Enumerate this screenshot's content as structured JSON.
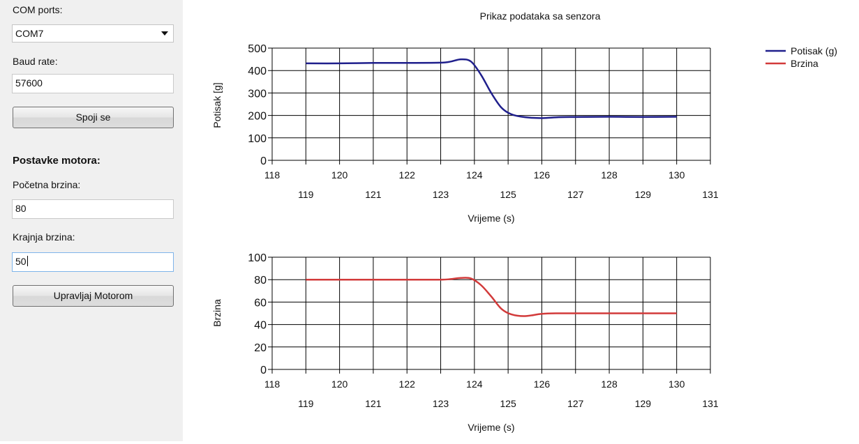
{
  "sidebar": {
    "com_label": "COM ports:",
    "com_value": "COM7",
    "baud_label": "Baud rate:",
    "baud_value": "57600",
    "connect_button": "Spoji se",
    "motor_section": "Postavke motora:",
    "start_speed_label": "Početna brzina:",
    "start_speed_value": "80",
    "end_speed_label": "Krajnja brzina:",
    "end_speed_value": "50",
    "control_button": "Upravljaj Motorom"
  },
  "colors": {
    "potisak": "#1f1f8c",
    "brzina": "#d23a3a"
  },
  "chart_data": [
    {
      "type": "line",
      "title": "Prikaz podataka sa senzora",
      "xlabel": "Vrijeme (s)",
      "ylabel": "Potisak [g]",
      "xlim": [
        118,
        131
      ],
      "ylim": [
        0,
        500
      ],
      "xticks_upper": [
        "118",
        "120",
        "122",
        "124",
        "126",
        "128",
        "130"
      ],
      "xticks_lower": [
        "119",
        "121",
        "123",
        "125",
        "127",
        "129",
        "131"
      ],
      "yticks": [
        "0",
        "100",
        "200",
        "300",
        "400",
        "500"
      ],
      "legend_position": "top-right",
      "series": [
        {
          "name": "Potisak (g)",
          "x": [
            119,
            120,
            121,
            122,
            123,
            123.3,
            123.6,
            123.9,
            124.2,
            124.5,
            124.8,
            125.1,
            125.5,
            126,
            126.5,
            127,
            128,
            129,
            130
          ],
          "values": [
            432,
            432,
            434,
            434,
            435,
            440,
            450,
            440,
            380,
            300,
            235,
            205,
            192,
            188,
            192,
            193,
            194,
            193,
            194
          ]
        }
      ]
    },
    {
      "type": "line",
      "xlabel": "Vrijeme (s)",
      "ylabel": "Brzina",
      "xlim": [
        118,
        131
      ],
      "ylim": [
        0,
        100
      ],
      "xticks_upper": [
        "118",
        "120",
        "122",
        "124",
        "126",
        "128",
        "130"
      ],
      "xticks_lower": [
        "119",
        "121",
        "123",
        "125",
        "127",
        "129",
        "131"
      ],
      "yticks": [
        "0",
        "20",
        "40",
        "60",
        "80",
        "100"
      ],
      "series": [
        {
          "name": "Brzina",
          "x": [
            119,
            120,
            121,
            122,
            123,
            123.3,
            123.6,
            123.9,
            124.2,
            124.5,
            124.8,
            125.1,
            125.5,
            126,
            126.5,
            127,
            128,
            129,
            130
          ],
          "values": [
            80,
            80,
            80,
            80,
            80,
            80.5,
            81.5,
            81,
            75,
            65,
            54,
            49,
            47.5,
            49.5,
            50,
            50,
            50,
            50,
            50
          ]
        }
      ]
    }
  ]
}
